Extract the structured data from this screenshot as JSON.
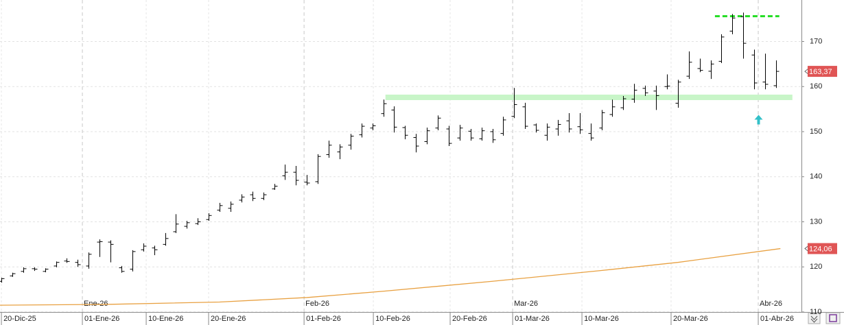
{
  "chart_data": {
    "type": "ohlc",
    "ohlc": {
      "color": "#000000",
      "open": [
        116.8,
        118.0,
        119.0,
        119.6,
        119.0,
        120.2,
        121.3,
        121.0,
        120.2,
        125.5,
        125.5,
        119.8,
        119.5,
        123.8,
        124.2,
        125.0,
        127.8,
        129.0,
        129.6,
        130.5,
        132.6,
        133.0,
        134.8,
        136.0,
        135.2,
        137.3,
        140.2,
        141.0,
        138.8,
        138.9,
        144.9,
        145.5,
        147.0,
        149.3,
        150.8,
        154.0,
        154.8,
        150.9,
        148.7,
        147.8,
        150.8,
        150.6,
        148.6,
        150.1,
        148.4,
        150.0,
        149.6,
        153.4,
        155.5,
        151.5,
        149.2,
        150.6,
        152.4,
        151.1,
        149.6,
        150.8,
        153.8,
        155.3,
        157.2,
        159.6,
        159.0,
        160.0,
        156.3,
        162.3,
        164.0,
        163.4,
        165.6,
        172.3,
        175.5,
        167.0,
        161.0,
        160.2
      ],
      "high": [
        117.6,
        118.7,
        119.9,
        119.9,
        119.7,
        121.2,
        121.9,
        121.6,
        123.2,
        126.1,
        125.9,
        120.2,
        123.7,
        125.2,
        124.7,
        127.5,
        131.7,
        130.2,
        130.8,
        131.9,
        134.2,
        134.5,
        136.1,
        136.7,
        136.5,
        138.4,
        142.7,
        142.4,
        140.4,
        145.0,
        148.0,
        147.2,
        149.5,
        151.8,
        151.8,
        157.1,
        155.6,
        151.3,
        149.5,
        150.9,
        153.6,
        151.3,
        151.5,
        150.6,
        150.9,
        150.6,
        153.3,
        159.7,
        156.4,
        151.8,
        151.8,
        152.6,
        154.1,
        154.1,
        151.8,
        154.8,
        157.1,
        157.9,
        160.6,
        160.2,
        160.2,
        162.7,
        161.5,
        167.8,
        166.2,
        165.8,
        171.6,
        176.1,
        176.4,
        168.2,
        167.3,
        165.8
      ],
      "low": [
        116.5,
        117.8,
        118.7,
        119.1,
        118.8,
        119.9,
        120.9,
        120.0,
        119.6,
        122.2,
        121.0,
        118.7,
        119.0,
        123.4,
        122.6,
        124.7,
        127.5,
        128.5,
        129.3,
        130.2,
        132.2,
        132.2,
        134.3,
        134.6,
        134.8,
        137.1,
        139.3,
        138.1,
        138.1,
        138.4,
        144.2,
        143.9,
        146.0,
        148.7,
        150.3,
        153.3,
        149.8,
        148.3,
        145.4,
        147.2,
        150.3,
        146.8,
        148.0,
        148.0,
        148.0,
        147.5,
        149.1,
        153.0,
        150.6,
        149.8,
        148.0,
        149.1,
        149.8,
        149.5,
        148.0,
        150.3,
        153.3,
        154.8,
        156.4,
        157.9,
        154.8,
        159.4,
        155.3,
        161.7,
        163.2,
        161.7,
        165.2,
        171.6,
        166.2,
        159.4,
        159.4,
        159.7
      ],
      "close": [
        117.4,
        118.5,
        119.6,
        119.5,
        119.5,
        121.0,
        121.2,
        120.5,
        122.8,
        125.6,
        125.0,
        119.0,
        123.4,
        124.6,
        123.8,
        126.3,
        129.5,
        129.8,
        130.0,
        131.4,
        133.6,
        133.9,
        135.5,
        135.2,
        136.0,
        137.9,
        141.0,
        139.2,
        138.6,
        144.5,
        147.0,
        146.6,
        149.0,
        151.2,
        151.3,
        156.2,
        151.0,
        149.2,
        146.8,
        150.2,
        153.0,
        147.4,
        150.8,
        148.6,
        150.2,
        148.2,
        152.6,
        156.0,
        151.2,
        150.3,
        151.0,
        151.6,
        150.6,
        150.4,
        148.6,
        154.2,
        155.5,
        157.3,
        159.2,
        158.6,
        158.0,
        160.1,
        161.0,
        165.4,
        163.6,
        165.0,
        171.0,
        175.2,
        169.6,
        160.8,
        160.5,
        163.37
      ]
    },
    "moving_average": {
      "color": "#e8a040",
      "x": [
        -0.13,
        10,
        20,
        28,
        35,
        45,
        55,
        62,
        71.4
      ],
      "values": [
        111.5,
        111.7,
        112.2,
        113.2,
        114.6,
        116.8,
        119.2,
        121.0,
        124.06
      ]
    },
    "price_tags": [
      {
        "value": 163.37,
        "label": "163,37",
        "color": "#e05555"
      },
      {
        "value": 124.06,
        "label": "124,06",
        "color": "#e05555"
      }
    ],
    "annotations": [
      {
        "kind": "band",
        "value": 157.6,
        "x": [
          35.2,
          72.5
        ],
        "color": "#c8f5c8"
      },
      {
        "kind": "dashed",
        "value": 175.6,
        "x": [
          65.4,
          71.3
        ],
        "color": "#22dd22"
      },
      {
        "kind": "arrow",
        "value": 152.5,
        "x": [
          69.4,
          69.4
        ],
        "color": "#33c0c8"
      }
    ],
    "xlim": [
      -0.13,
      73.33
    ],
    "ylim": [
      110,
      179.2
    ],
    "yticks": [
      110,
      120,
      130,
      140,
      150,
      160,
      170
    ],
    "xticks": [
      {
        "value": 0,
        "label": "20-Dic-25"
      },
      {
        "value": 7.42,
        "label": "01-Ene-26"
      },
      {
        "value": 13.27,
        "label": "10-Ene-26"
      },
      {
        "value": 18.99,
        "label": "20-Ene-26"
      },
      {
        "value": 27.74,
        "label": "01-Feb-26"
      },
      {
        "value": 34.09,
        "label": "10-Feb-26"
      },
      {
        "value": 41.13,
        "label": "20-Feb-26"
      },
      {
        "value": 46.86,
        "label": "01-Mar-26"
      },
      {
        "value": 53.21,
        "label": "10-Mar-26"
      },
      {
        "value": 61.38,
        "label": "20-Mar-26"
      },
      {
        "value": 69.37,
        "label": "01-Abr-26"
      }
    ],
    "month_ticks": [
      {
        "value": 7.42,
        "label": "Ene-26"
      },
      {
        "value": 27.74,
        "label": "Feb-26"
      },
      {
        "value": 46.86,
        "label": "Mar-26"
      },
      {
        "value": 69.37,
        "label": "Abr-26"
      }
    ],
    "grid": true
  }
}
